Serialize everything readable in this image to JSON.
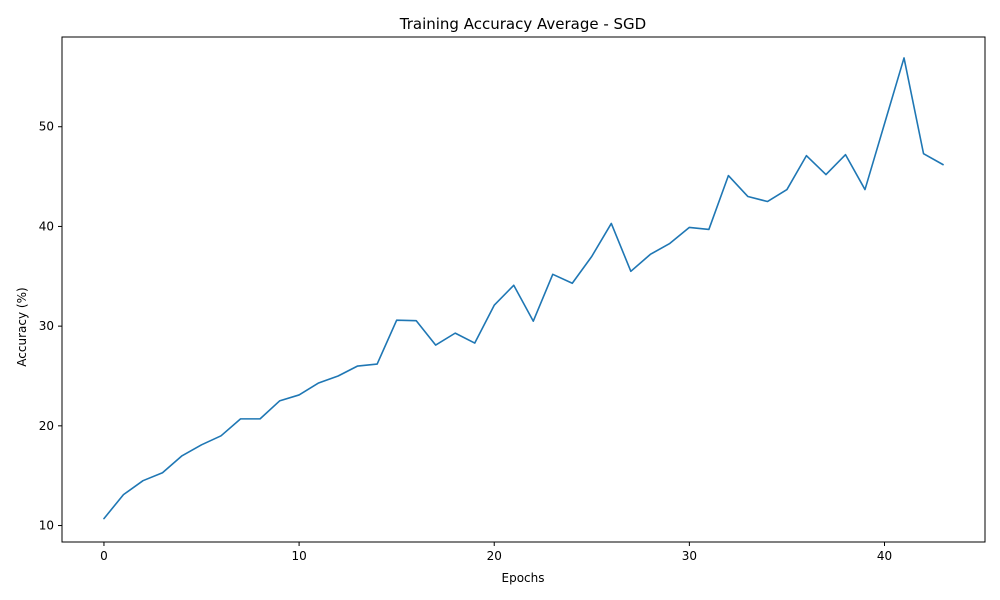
{
  "chart_data": {
    "type": "line",
    "title": "Training Accuracy Average - SGD",
    "xlabel": "Epochs",
    "ylabel": "Accuracy (%)",
    "xlim": [
      -2.15,
      45.15
    ],
    "ylim": [
      8.35,
      59.0
    ],
    "xticks": [
      0,
      10,
      20,
      30,
      40
    ],
    "yticks": [
      10,
      20,
      30,
      40,
      50
    ],
    "grid": false,
    "line_color": "#1f77b4",
    "series": [
      {
        "x": [
          0,
          1,
          2,
          3,
          4,
          5,
          6,
          7,
          8,
          9,
          10,
          11,
          12,
          13,
          14,
          15,
          16,
          17,
          18,
          19,
          20,
          21,
          22,
          23,
          24,
          25,
          26,
          27,
          28,
          29,
          30,
          31,
          32,
          33,
          34,
          35,
          36,
          37,
          38,
          39,
          40,
          41,
          42,
          43
        ],
        "values": [
          10.7,
          13.1,
          14.5,
          15.3,
          17.0,
          18.1,
          19.0,
          20.7,
          20.7,
          22.5,
          23.1,
          24.3,
          25.0,
          26.0,
          26.2,
          30.6,
          30.55,
          28.1,
          29.3,
          28.3,
          32.1,
          34.1,
          30.5,
          35.2,
          34.3,
          37.0,
          40.3,
          35.5,
          37.2,
          38.3,
          39.9,
          39.7,
          45.1,
          43.0,
          42.5,
          43.7,
          47.1,
          45.2,
          47.2,
          43.7,
          50.3,
          56.9,
          47.3,
          46.2
        ]
      }
    ]
  }
}
